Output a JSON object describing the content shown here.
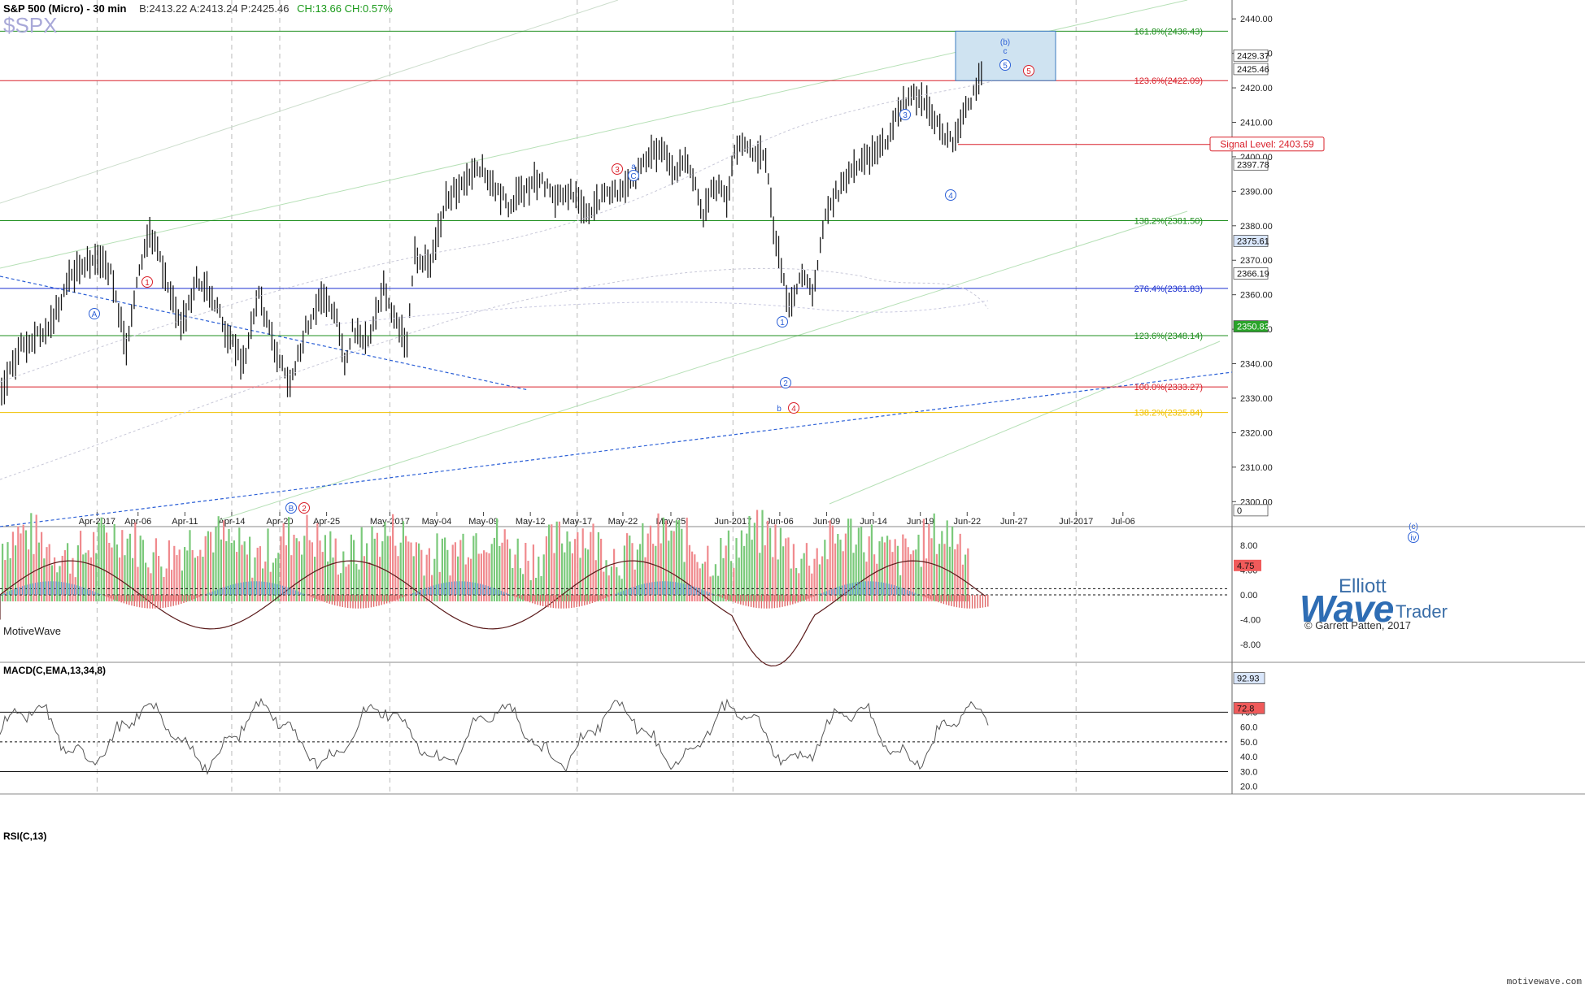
{
  "header": {
    "title": "S&P 500 (Micro) - 30 min",
    "quote": "B:2413.22  A:2413.24  P:2425.46",
    "change": "CH:13.66  CH:0.57%",
    "symbol": "$SPX",
    "brand_watermark": "MotiveWave",
    "footer": "motivewave.com"
  },
  "logo": {
    "line1": "Elliott",
    "line2": "Wave",
    "line3": "Trader",
    "copyright": "© Garrett Patten, 2017"
  },
  "colors": {
    "up": "#2a9a2a",
    "down": "#e8525a",
    "bars": "#1a1a1a",
    "green_level": "#1f8f1f",
    "red_level": "#d9202a",
    "blue_level": "#1a2fd0",
    "yellow_level": "#f0c000",
    "trend_blue": "#2b5fd6",
    "target_box_fill": "#cfe3f1",
    "target_box_stroke": "#3b7bbf"
  },
  "chart_data": [
    {
      "id": "price",
      "type": "ohlc",
      "ylim": [
        2297,
        2445
      ],
      "y_ticks": [
        2300,
        2310,
        2320,
        2330,
        2340,
        2350,
        2360,
        2370,
        2380,
        2390,
        2400,
        2410,
        2420,
        2430,
        2440
      ],
      "y_tick_labels": [
        "2300.00",
        "2310.00",
        "2320.00",
        "2330.00",
        "2340.00",
        "2350.00",
        "2360.00",
        "2370.00",
        "2380.00",
        "2390.00",
        "2400.00",
        "2410.00",
        "2420.00",
        "2430.00",
        "2440.00"
      ],
      "x_labels": [
        "Apr-2017",
        "Apr-06",
        "Apr-11",
        "Apr-14",
        "Apr-20",
        "Apr-25",
        "May-2017",
        "May-04",
        "May-09",
        "May-12",
        "May-17",
        "May-22",
        "May-25",
        "Jun-2017",
        "Jun-06",
        "Jun-09",
        "Jun-14",
        "Jun-19",
        "Jun-22",
        "Jun-27",
        "Jul-2017",
        "Jul-06"
      ],
      "price_path": [
        [
          0,
          2332
        ],
        [
          5,
          2345
        ],
        [
          12,
          2350
        ],
        [
          18,
          2366
        ],
        [
          24,
          2371
        ],
        [
          28,
          2366
        ],
        [
          32,
          2345
        ],
        [
          34,
          2360
        ],
        [
          38,
          2378
        ],
        [
          42,
          2366
        ],
        [
          46,
          2350
        ],
        [
          50,
          2364
        ],
        [
          54,
          2360
        ],
        [
          58,
          2348
        ],
        [
          62,
          2340
        ],
        [
          66,
          2360
        ],
        [
          70,
          2344
        ],
        [
          74,
          2334
        ],
        [
          78,
          2350
        ],
        [
          82,
          2360
        ],
        [
          86,
          2352
        ],
        [
          88,
          2340
        ],
        [
          90,
          2350
        ],
        [
          94,
          2346
        ],
        [
          98,
          2362
        ],
        [
          100,
          2354
        ],
        [
          104,
          2346
        ],
        [
          106,
          2372
        ],
        [
          110,
          2368
        ],
        [
          114,
          2388
        ],
        [
          118,
          2392
        ],
        [
          122,
          2398
        ],
        [
          126,
          2392
        ],
        [
          130,
          2386
        ],
        [
          134,
          2390
        ],
        [
          138,
          2394
        ],
        [
          142,
          2388
        ],
        [
          146,
          2390
        ],
        [
          150,
          2384
        ],
        [
          154,
          2388
        ],
        [
          158,
          2390
        ],
        [
          162,
          2394
        ],
        [
          166,
          2400
        ],
        [
          170,
          2403
        ],
        [
          172,
          2396
        ],
        [
          176,
          2398
        ],
        [
          178,
          2392
        ],
        [
          180,
          2382
        ],
        [
          182,
          2390
        ],
        [
          184,
          2392
        ],
        [
          186,
          2388
        ],
        [
          188,
          2400
        ],
        [
          190,
          2404
        ],
        [
          192,
          2402
        ],
        [
          196,
          2400
        ],
        [
          198,
          2380
        ],
        [
          200,
          2368
        ],
        [
          202,
          2356
        ],
        [
          204,
          2362
        ],
        [
          206,
          2366
        ],
        [
          208,
          2360
        ],
        [
          210,
          2374
        ],
        [
          212,
          2386
        ],
        [
          216,
          2392
        ],
        [
          220,
          2398
        ],
        [
          224,
          2401
        ],
        [
          228,
          2406
        ],
        [
          230,
          2414
        ],
        [
          234,
          2418
        ],
        [
          236,
          2416
        ],
        [
          238,
          2414
        ],
        [
          240,
          2410
        ],
        [
          242,
          2406
        ],
        [
          244,
          2404
        ],
        [
          246,
          2410
        ],
        [
          250,
          2420
        ],
        [
          252,
          2426
        ]
      ],
      "y_axis_tags": [
        {
          "label": "2429.37",
          "color": "#ffffff",
          "value": 2429.37
        },
        {
          "label": "2425.46",
          "color": "#ffffff",
          "value": 2425.46
        },
        {
          "label": "2397.78",
          "color": "#ffffff",
          "value": 2397.78
        },
        {
          "label": "2375.61",
          "color": "#d9e6fb",
          "value": 2375.61
        },
        {
          "label": "2366.19",
          "color": "#ffffff",
          "value": 2366.19
        },
        {
          "label": "2350.83",
          "color": "#29a329",
          "value": 2350.83
        },
        {
          "label": "0",
          "color": "#ffffff",
          "value": 2297.5
        }
      ],
      "levels": [
        {
          "label": "161.8%(2436.43)",
          "value": 2436.43,
          "color": "#1f8f1f"
        },
        {
          "label": "123.6%(2422.09)",
          "value": 2422.09,
          "color": "#d9202a"
        },
        {
          "label": "138.2%(2381.50)",
          "value": 2381.5,
          "color": "#1f8f1f"
        },
        {
          "label": "276.4%(2361.83)",
          "value": 2361.83,
          "color": "#1a2fd0"
        },
        {
          "label": "123.6%(2348.14)",
          "value": 2348.14,
          "color": "#1f8f1f"
        },
        {
          "label": "100.0%(2333.27)",
          "value": 2333.27,
          "color": "#d9202a"
        },
        {
          "label": "138.2%(2325.84)",
          "value": 2325.84,
          "color": "#f0c000"
        }
      ],
      "signal": {
        "label": "Signal Level: 2403.59",
        "value": 2403.59
      },
      "target_box": {
        "high": 2436.43,
        "low": 2422.09
      },
      "wave_labels": [
        {
          "text": "1",
          "color": "red"
        },
        {
          "text": "A",
          "color": "blue"
        },
        {
          "text": "B",
          "color": "blue"
        },
        {
          "text": "2",
          "color": "red"
        },
        {
          "text": "3",
          "color": "red"
        },
        {
          "text": "a",
          "color": "blue"
        },
        {
          "text": "C",
          "color": "blue"
        },
        {
          "text": "1",
          "color": "blue"
        },
        {
          "text": "2",
          "color": "blue"
        },
        {
          "text": "b",
          "color": "blue"
        },
        {
          "text": "4",
          "color": "red"
        },
        {
          "text": "3",
          "color": "blue"
        },
        {
          "text": "4",
          "color": "blue"
        },
        {
          "text": "(b)",
          "color": "blue"
        },
        {
          "text": "c",
          "color": "blue"
        },
        {
          "text": "5",
          "color": "blue"
        },
        {
          "text": "5",
          "color": "red"
        },
        {
          "text": "(c)",
          "color": "blue"
        },
        {
          "text": "iv",
          "color": "blue"
        }
      ]
    },
    {
      "id": "macd",
      "type": "line",
      "title": "MACD(C,EMA,13,34,8)",
      "ylim": [
        -10.5,
        10.5
      ],
      "y_ticks": [
        -8,
        -4,
        0,
        4,
        8
      ],
      "y_tick_labels": [
        "-8.00",
        "-4.00",
        "0.00",
        "4.00",
        "8.00"
      ],
      "current": "4.75",
      "zero_line_values": [
        0,
        1.0
      ]
    },
    {
      "id": "rsi",
      "type": "line",
      "title": "RSI(C,13)",
      "ylim": [
        16,
        102
      ],
      "y_ticks": [
        20,
        30,
        40,
        50,
        60,
        70
      ],
      "y_tick_labels": [
        "20.0",
        "30.0",
        "40.0",
        "50.0",
        "60.0",
        "70.0"
      ],
      "tags": [
        {
          "label": "92.93",
          "value": 92.93,
          "color": "#d9e6fb"
        },
        {
          "label": "72.8",
          "value": 72.8,
          "color": "#f05a5a"
        }
      ],
      "levels": [
        70,
        50,
        30
      ]
    }
  ]
}
